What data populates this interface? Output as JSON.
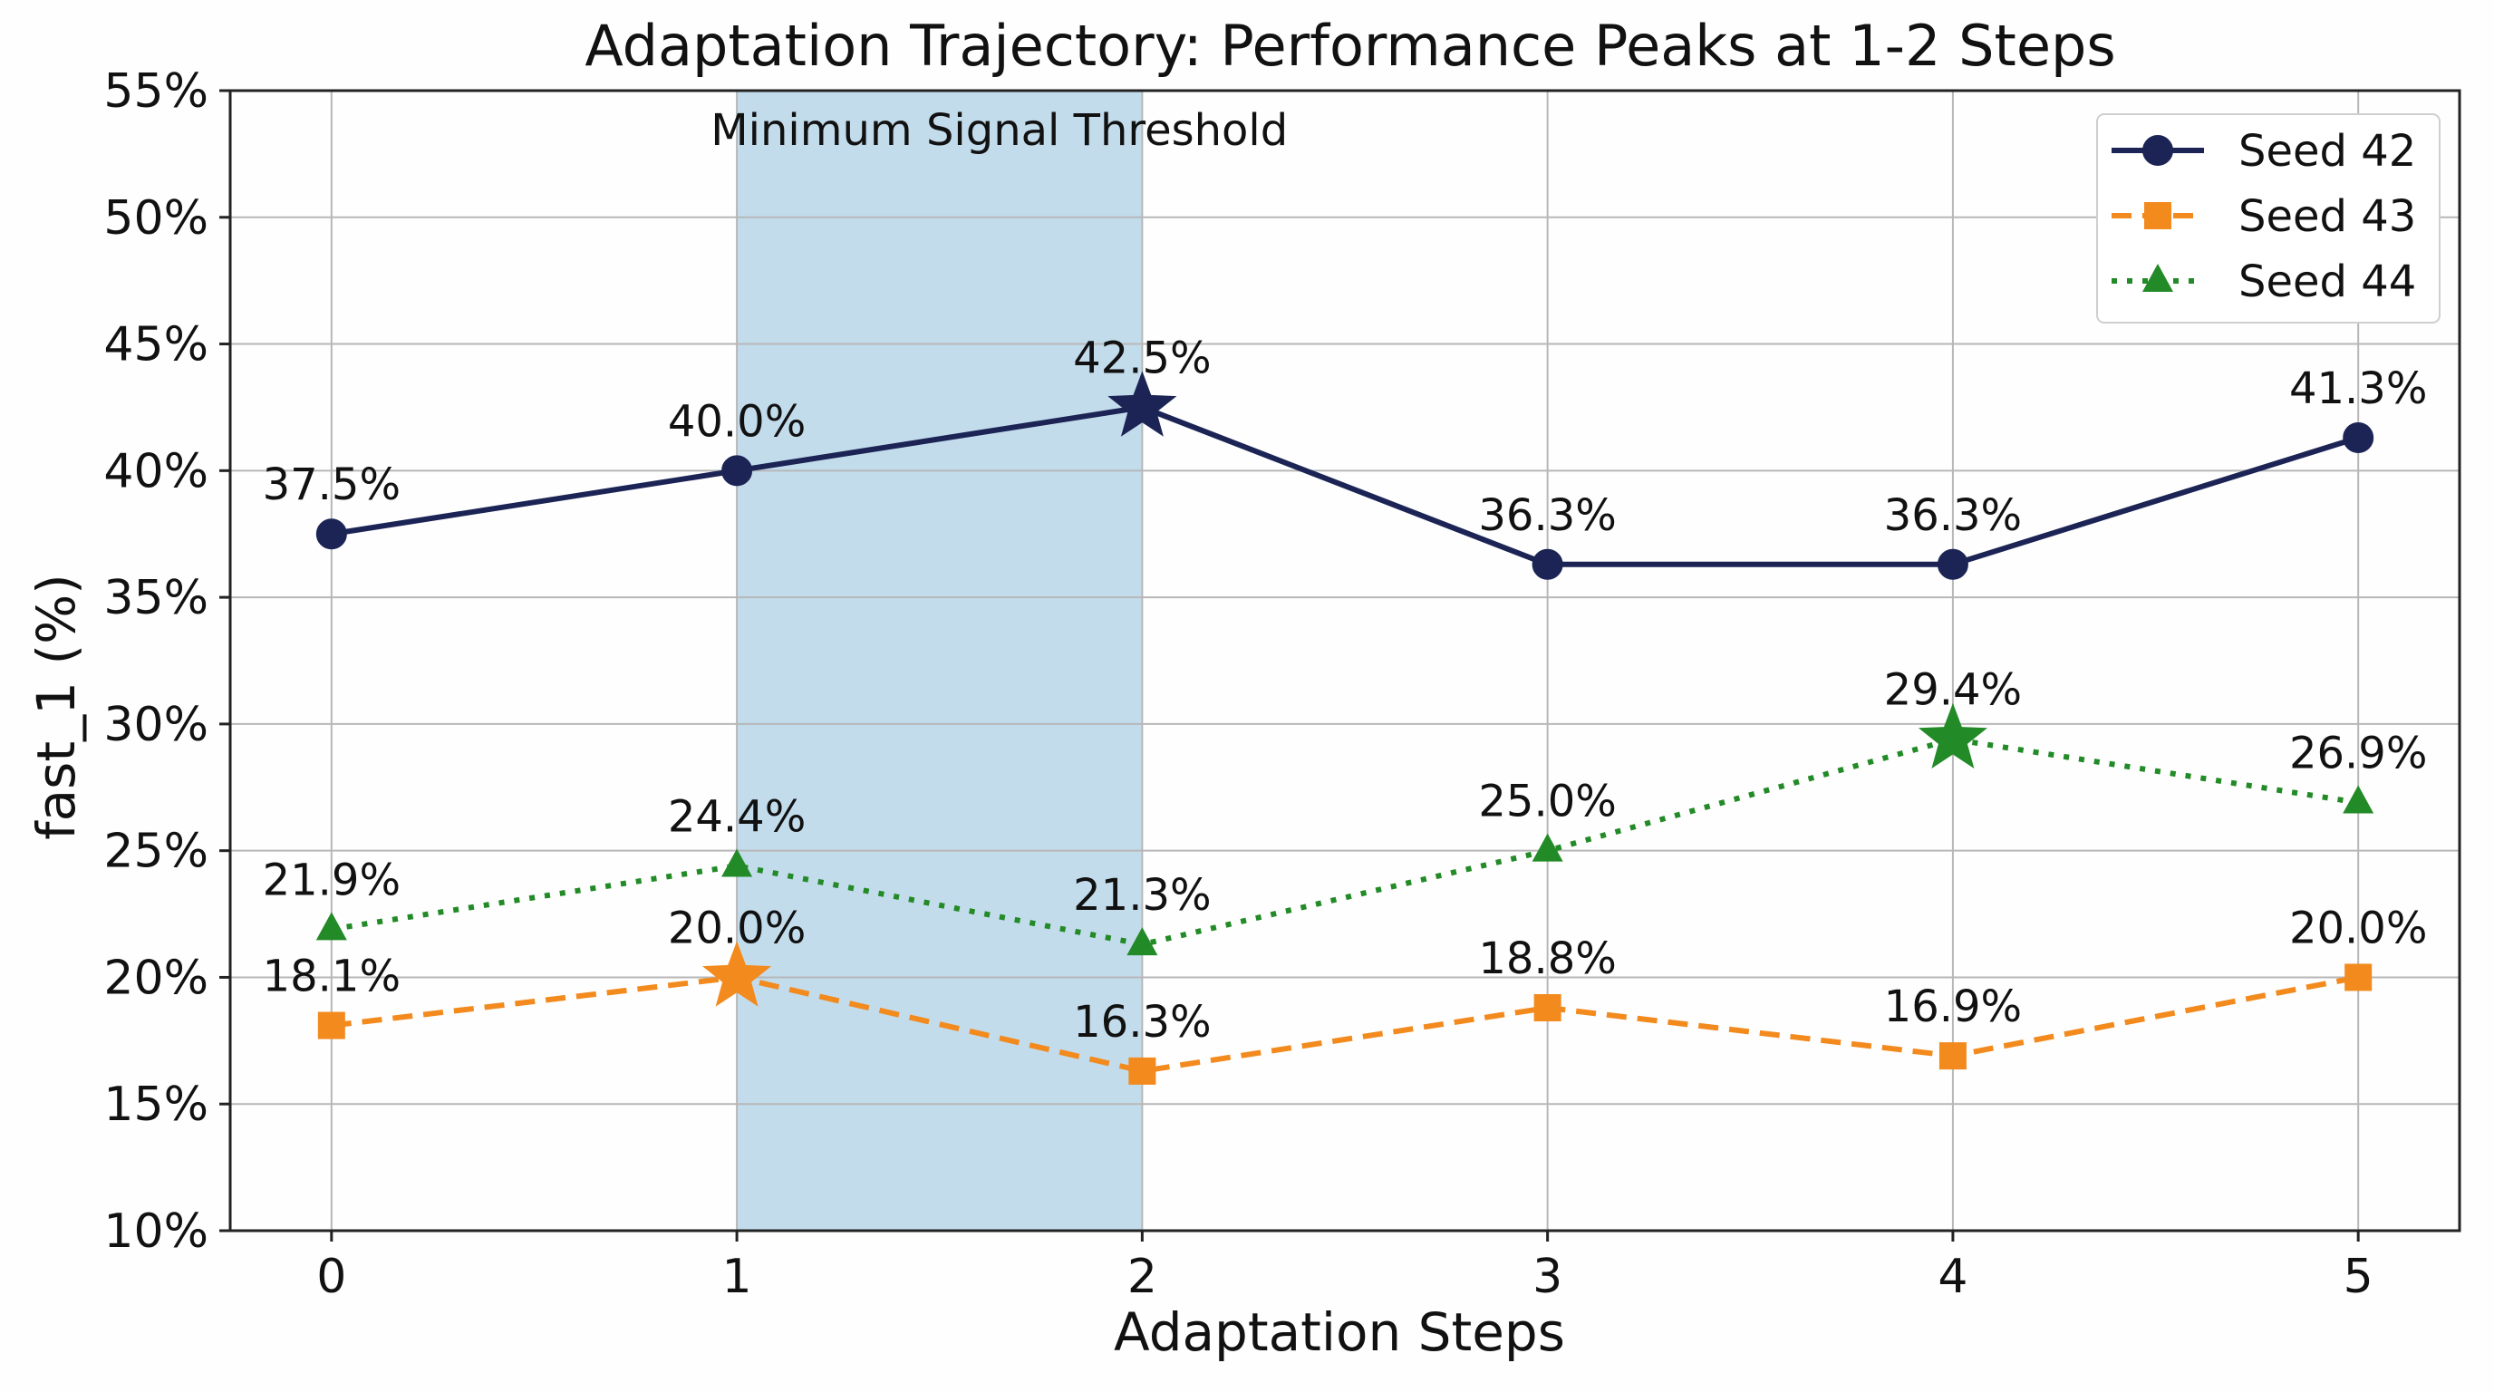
{
  "chart_data": {
    "type": "line",
    "title": "Adaptation Trajectory: Performance Peaks at 1-2 Steps",
    "xlabel": "Adaptation Steps",
    "ylabel": "fast_1 (%)",
    "x": [
      0,
      1,
      2,
      3,
      4,
      5
    ],
    "xlim": [
      -0.25,
      5.25
    ],
    "ylim": [
      10,
      55
    ],
    "yticks": [
      10,
      15,
      20,
      25,
      30,
      35,
      40,
      45,
      50,
      55
    ],
    "ytick_suffix": "%",
    "grid": true,
    "legend_position": "top-right",
    "shaded_region": {
      "x0": 1,
      "x1": 2,
      "label": "Minimum Signal Threshold",
      "color": "#c3dcec"
    },
    "series": [
      {
        "name": "Seed 42",
        "values": [
          37.5,
          40.0,
          42.5,
          36.3,
          36.3,
          41.3
        ],
        "labels": [
          "37.5%",
          "40.0%",
          "42.5%",
          "36.3%",
          "36.3%",
          "41.3%"
        ],
        "color": "#1b2455",
        "marker": "circle",
        "line_style": "solid",
        "peak_index": 2
      },
      {
        "name": "Seed 43",
        "values": [
          18.1,
          20.0,
          16.3,
          18.8,
          16.9,
          20.0
        ],
        "labels": [
          "18.1%",
          "20.0%",
          "16.3%",
          "18.8%",
          "16.9%",
          "20.0%"
        ],
        "color": "#f28a1e",
        "marker": "square",
        "line_style": "dashed",
        "peak_index": 1
      },
      {
        "name": "Seed 44",
        "values": [
          21.9,
          24.4,
          21.3,
          25.0,
          29.4,
          26.9
        ],
        "labels": [
          "21.9%",
          "24.4%",
          "21.3%",
          "25.0%",
          "29.4%",
          "26.9%"
        ],
        "color": "#228a26",
        "marker": "triangle",
        "line_style": "dotted",
        "peak_index": 4
      }
    ]
  }
}
